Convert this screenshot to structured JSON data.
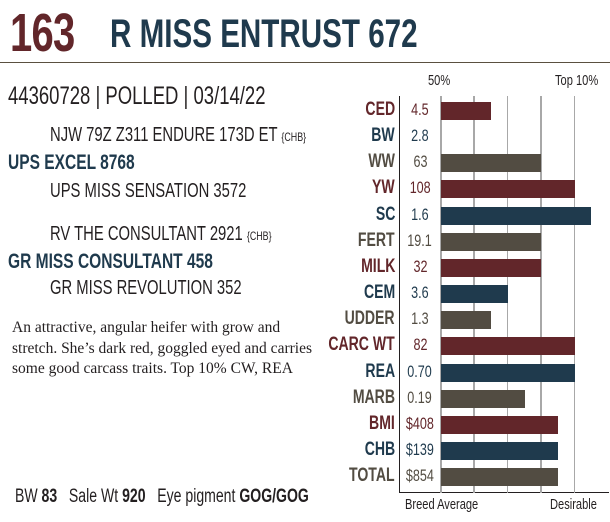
{
  "header": {
    "lot_number": "163",
    "animal_name": "R MISS ENTRUST 672"
  },
  "id_line": "44360728 | POLLED | 03/14/22",
  "pedigree": {
    "sire_sire": "NJW 79Z Z311 ENDURE 173D ET",
    "sire_sire_tag": "{CHB}",
    "sire": "UPS EXCEL 8768",
    "sire_dam": "UPS MISS SENSATION 3572",
    "dam_sire": "RV THE CONSULTANT 2921",
    "dam_sire_tag": "{CHB}",
    "dam": "GR MISS CONSULTANT 458",
    "dam_dam": "GR MISS REVOLUTION 352"
  },
  "description": "An attractive, angular heifer with grow and stretch. She’s dark red, goggled eyed and carries some good carcass traits. Top 10% CW, REA",
  "footer": {
    "bw_label": "BW",
    "bw": "83",
    "sale_wt_label": "Sale Wt",
    "sale_wt": "920",
    "eye_label": "Eye pigment",
    "eye": "GOG/GOG"
  },
  "colors": {
    "red": "#62262a",
    "blue": "#1f3a4d",
    "gray": "#524c42"
  },
  "chart_data": {
    "type": "bar",
    "top_labels": [
      "50%",
      "Top 10%"
    ],
    "bottom_labels": [
      "Breed Average",
      "Desirable"
    ],
    "xlim": [
      0,
      5
    ],
    "rows": [
      {
        "trait": "CED",
        "value": "4.5",
        "score": 1.5,
        "color": "red"
      },
      {
        "trait": "BW",
        "value": "2.8",
        "score": 0,
        "color": "blue"
      },
      {
        "trait": "WW",
        "value": "63",
        "score": 3,
        "color": "gray"
      },
      {
        "trait": "YW",
        "value": "108",
        "score": 4,
        "color": "red"
      },
      {
        "trait": "SC",
        "value": "1.6",
        "score": 4.5,
        "color": "blue"
      },
      {
        "trait": "FERT",
        "value": "19.1",
        "score": 3,
        "color": "gray"
      },
      {
        "trait": "MILK",
        "value": "32",
        "score": 3,
        "color": "red"
      },
      {
        "trait": "CEM",
        "value": "3.6",
        "score": 2,
        "color": "blue"
      },
      {
        "trait": "UDDER",
        "value": "1.3",
        "score": 1.5,
        "color": "gray"
      },
      {
        "trait": "CARC WT",
        "value": "82",
        "score": 4,
        "color": "red"
      },
      {
        "trait": "REA",
        "value": "0.70",
        "score": 4,
        "color": "blue"
      },
      {
        "trait": "MARB",
        "value": "0.19",
        "score": 2.5,
        "color": "gray"
      },
      {
        "trait": "BMI",
        "value": "$408",
        "score": 3.5,
        "color": "red"
      },
      {
        "trait": "CHB",
        "value": "$139",
        "score": 3.5,
        "color": "blue"
      },
      {
        "trait": "TOTAL",
        "value": "$854",
        "score": 3.5,
        "color": "gray"
      }
    ]
  }
}
